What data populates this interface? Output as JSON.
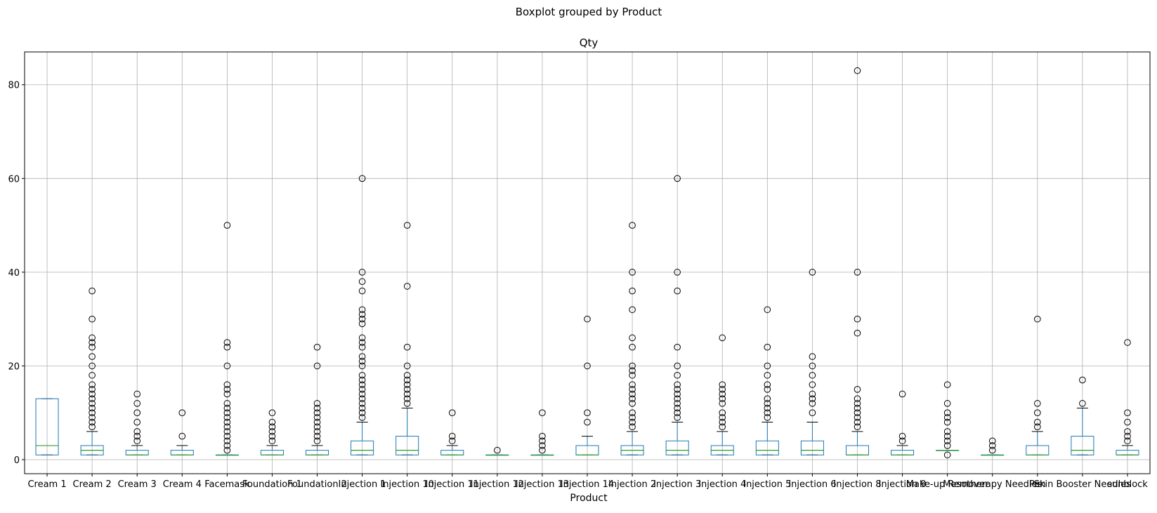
{
  "figure": {
    "suptitle": "Boxplot grouped by Product"
  },
  "chart_data": {
    "type": "box",
    "title": "Qty",
    "xlabel": "Product",
    "ylabel": "",
    "ylim": [
      -3,
      87
    ],
    "yticks": [
      0,
      20,
      40,
      60,
      80
    ],
    "grid": true,
    "colors": {
      "box": "#1f77b4",
      "median": "#2ca02c",
      "whisker": "#1f77b4",
      "cap": "#000000",
      "grid": "#b0b0b0",
      "flier": "#000000"
    },
    "categories": [
      "Cream 1",
      "Cream 2",
      "Cream 3",
      "Cream 4",
      "Facemask",
      "Foundation 1",
      "Foundation 2",
      "Injection 1",
      "Injection 10",
      "Injection 11",
      "Injection 12",
      "Injection 13",
      "Injection 14",
      "Injection 2",
      "Injection 3",
      "Injection 4",
      "Injection 5",
      "Injection 6",
      "Injection 8",
      "Injection 9",
      "Make-up Remover",
      "Mesotherapy Needles",
      "Pen",
      "Skin Booster Needles",
      "sunblock"
    ],
    "boxes": [
      {
        "whislo": 1,
        "q1": 1,
        "med": 3,
        "q3": 13,
        "whishi": 13,
        "fliers": []
      },
      {
        "whislo": 1,
        "q1": 1,
        "med": 2,
        "q3": 3,
        "whishi": 6,
        "fliers": [
          7,
          8,
          9,
          10,
          11,
          12,
          13,
          14,
          15,
          16,
          18,
          20,
          22,
          24,
          25,
          26,
          30,
          36
        ]
      },
      {
        "whislo": 1,
        "q1": 1,
        "med": 1,
        "q3": 2,
        "whishi": 3,
        "fliers": [
          4,
          5,
          6,
          8,
          10,
          12,
          14
        ]
      },
      {
        "whislo": 1,
        "q1": 1,
        "med": 1,
        "q3": 2,
        "whishi": 3,
        "fliers": [
          5,
          10
        ]
      },
      {
        "whislo": 1,
        "q1": 1,
        "med": 1,
        "q3": 1,
        "whishi": 1,
        "fliers": [
          2,
          3,
          4,
          5,
          6,
          7,
          8,
          9,
          10,
          11,
          12,
          14,
          15,
          16,
          20,
          24,
          25,
          50
        ]
      },
      {
        "whislo": 1,
        "q1": 1,
        "med": 1,
        "q3": 2,
        "whishi": 3,
        "fliers": [
          4,
          5,
          6,
          7,
          8,
          10
        ]
      },
      {
        "whislo": 1,
        "q1": 1,
        "med": 1,
        "q3": 2,
        "whishi": 3,
        "fliers": [
          4,
          5,
          6,
          7,
          8,
          9,
          10,
          11,
          12,
          20,
          24
        ]
      },
      {
        "whislo": 1,
        "q1": 1,
        "med": 2,
        "q3": 4,
        "whishi": 8,
        "fliers": [
          9,
          10,
          11,
          12,
          13,
          14,
          15,
          16,
          17,
          18,
          20,
          21,
          22,
          24,
          25,
          26,
          29,
          30,
          31,
          32,
          36,
          38,
          40,
          60
        ]
      },
      {
        "whislo": 1,
        "q1": 1,
        "med": 2,
        "q3": 5,
        "whishi": 11,
        "fliers": [
          12,
          13,
          14,
          15,
          16,
          17,
          18,
          20,
          24,
          37,
          50
        ]
      },
      {
        "whislo": 1,
        "q1": 1,
        "med": 1,
        "q3": 2,
        "whishi": 3,
        "fliers": [
          4,
          5,
          10
        ]
      },
      {
        "whislo": 1,
        "q1": 1,
        "med": 1,
        "q3": 1,
        "whishi": 1,
        "fliers": [
          2
        ]
      },
      {
        "whislo": 1,
        "q1": 1,
        "med": 1,
        "q3": 1,
        "whishi": 1,
        "fliers": [
          2,
          3,
          4,
          5,
          10
        ]
      },
      {
        "whislo": 1,
        "q1": 1,
        "med": 1,
        "q3": 3,
        "whishi": 5,
        "fliers": [
          8,
          10,
          20,
          30
        ]
      },
      {
        "whislo": 1,
        "q1": 1,
        "med": 2,
        "q3": 3,
        "whishi": 6,
        "fliers": [
          7,
          8,
          9,
          10,
          12,
          13,
          14,
          15,
          16,
          18,
          19,
          20,
          24,
          26,
          32,
          36,
          40,
          50
        ]
      },
      {
        "whislo": 1,
        "q1": 1,
        "med": 2,
        "q3": 4,
        "whishi": 8,
        "fliers": [
          9,
          10,
          11,
          12,
          13,
          14,
          15,
          16,
          18,
          20,
          24,
          36,
          40,
          60
        ]
      },
      {
        "whislo": 1,
        "q1": 1,
        "med": 2,
        "q3": 3,
        "whishi": 6,
        "fliers": [
          7,
          8,
          9,
          10,
          12,
          13,
          14,
          15,
          16,
          26
        ]
      },
      {
        "whislo": 1,
        "q1": 1,
        "med": 2,
        "q3": 4,
        "whishi": 8,
        "fliers": [
          9,
          10,
          11,
          12,
          13,
          15,
          16,
          18,
          20,
          24,
          32
        ]
      },
      {
        "whislo": 1,
        "q1": 1,
        "med": 2,
        "q3": 4,
        "whishi": 8,
        "fliers": [
          10,
          12,
          13,
          14,
          16,
          18,
          20,
          22,
          40
        ]
      },
      {
        "whislo": 1,
        "q1": 1,
        "med": 1,
        "q3": 3,
        "whishi": 6,
        "fliers": [
          7,
          8,
          9,
          10,
          11,
          12,
          13,
          15,
          27,
          30,
          40,
          83
        ]
      },
      {
        "whislo": 1,
        "q1": 1,
        "med": 1,
        "q3": 2,
        "whishi": 3,
        "fliers": [
          4,
          5,
          14
        ]
      },
      {
        "whislo": 2,
        "q1": 2,
        "med": 2,
        "q3": 2,
        "whishi": 2,
        "fliers": [
          1,
          3,
          4,
          5,
          6,
          8,
          9,
          10,
          12,
          16
        ]
      },
      {
        "whislo": 1,
        "q1": 1,
        "med": 1,
        "q3": 1,
        "whishi": 1,
        "fliers": [
          2,
          3,
          4
        ]
      },
      {
        "whislo": 1,
        "q1": 1,
        "med": 1,
        "q3": 3,
        "whishi": 6,
        "fliers": [
          7,
          8,
          10,
          12,
          30
        ]
      },
      {
        "whislo": 1,
        "q1": 1,
        "med": 2,
        "q3": 5,
        "whishi": 11,
        "fliers": [
          12,
          17
        ]
      },
      {
        "whislo": 1,
        "q1": 1,
        "med": 1,
        "q3": 2,
        "whishi": 3,
        "fliers": [
          4,
          5,
          6,
          8,
          10,
          25
        ]
      }
    ]
  }
}
